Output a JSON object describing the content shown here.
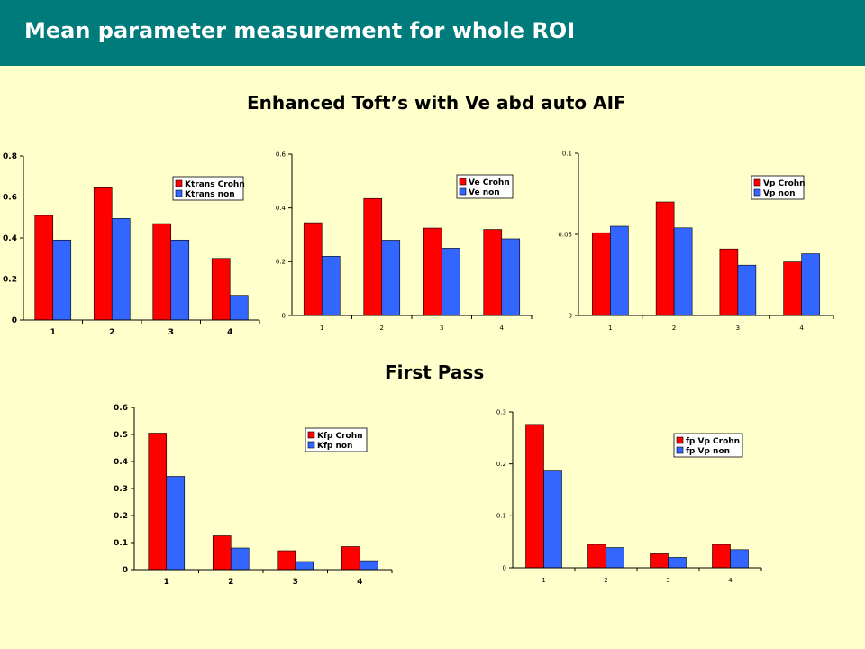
{
  "header": {
    "title": "Mean parameter measurement for whole ROI"
  },
  "sections": {
    "enhanced_title": "Enhanced Toft’s with Ve abd auto AIF",
    "first_pass_title": "First Pass"
  },
  "colors": {
    "series1": "#ff0000",
    "series2": "#3366ff",
    "header_bg": "#007b7b",
    "page_bg": "#ffffcc"
  },
  "chart_data": [
    {
      "type": "bar",
      "categories": [
        "1",
        "2",
        "3",
        "4"
      ],
      "series": [
        {
          "name": "Ktrans Crohn",
          "values": [
            0.51,
            0.645,
            0.47,
            0.3
          ]
        },
        {
          "name": "Ktrans non",
          "values": [
            0.39,
            0.495,
            0.39,
            0.12
          ]
        }
      ],
      "ylim": [
        0,
        0.8
      ],
      "yticks": [
        "0",
        "0.2",
        "0.4",
        "0.6",
        "0.8"
      ],
      "legend": "top-right",
      "grid": false
    },
    {
      "type": "bar",
      "categories": [
        "1",
        "2",
        "3",
        "4"
      ],
      "series": [
        {
          "name": "Ve Crohn",
          "values": [
            0.345,
            0.435,
            0.325,
            0.32
          ]
        },
        {
          "name": "Ve non",
          "values": [
            0.22,
            0.28,
            0.25,
            0.285
          ]
        }
      ],
      "ylim": [
        0,
        0.6
      ],
      "yticks": [
        "0",
        "0.2",
        "0.4",
        "0.6"
      ],
      "legend": "top-right",
      "grid": false
    },
    {
      "type": "bar",
      "categories": [
        "1",
        "2",
        "3",
        "4"
      ],
      "series": [
        {
          "name": "Vp Crohn",
          "values": [
            0.051,
            0.07,
            0.041,
            0.033
          ]
        },
        {
          "name": "Vp non",
          "values": [
            0.055,
            0.054,
            0.031,
            0.038
          ]
        }
      ],
      "ylim": [
        0,
        0.1
      ],
      "yticks": [
        "0",
        "0.05",
        "0.1"
      ],
      "legend": "top-right",
      "grid": false
    },
    {
      "type": "bar",
      "categories": [
        "1",
        "2",
        "3",
        "4"
      ],
      "series": [
        {
          "name": "Kfp Crohn",
          "values": [
            0.505,
            0.125,
            0.07,
            0.085
          ]
        },
        {
          "name": "Kfp non",
          "values": [
            0.345,
            0.08,
            0.03,
            0.033
          ]
        }
      ],
      "ylim": [
        0,
        0.6
      ],
      "yticks": [
        "0",
        "0.1",
        "0.2",
        "0.3",
        "0.4",
        "0.5",
        "0.6"
      ],
      "legend": "top-right",
      "grid": false
    },
    {
      "type": "bar",
      "categories": [
        "1",
        "2",
        "3",
        "4"
      ],
      "series": [
        {
          "name": "fp Vp Crohn",
          "values": [
            0.276,
            0.045,
            0.027,
            0.045
          ]
        },
        {
          "name": "fp Vp non",
          "values": [
            0.188,
            0.039,
            0.02,
            0.035
          ]
        }
      ],
      "ylim": [
        0,
        0.3
      ],
      "yticks": [
        "0",
        "0.1",
        "0.2",
        "0.3"
      ],
      "legend": "top-right",
      "grid": false
    }
  ]
}
